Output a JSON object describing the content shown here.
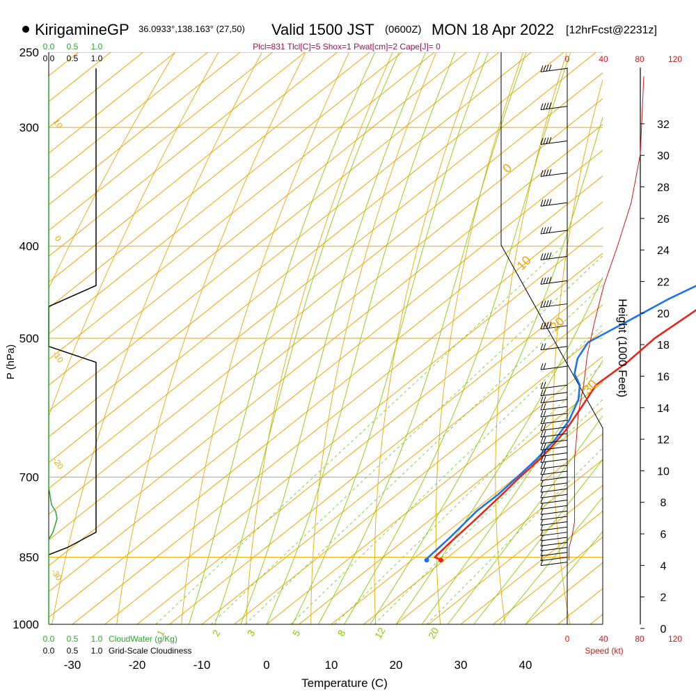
{
  "header": {
    "site": "KirigamineGP",
    "coords": "36.0933°,138.163° (27,50)",
    "valid": "Valid 1500 JST",
    "zulu": "(0600Z)",
    "date": "MON 18 Apr 2022",
    "forecast": "[12hrFcst@2231z]"
  },
  "indices_line": "Plcl=831 Tlcl[C]=5 Shox=1 Pwat[cm]=2 Cape[J]= 0",
  "colors": {
    "isotherm": "#f0a500",
    "adiabat": "#88cc00",
    "mixing": "#77cc33",
    "temp": "#e8251a",
    "dewp": "#1a73e8",
    "cloudwater": "#22aa22",
    "speed": "#e01010",
    "indices": "#a01050"
  },
  "chart_data": {
    "type": "line",
    "title": "KirigamineGP Valid 1500 JST (0600Z) MON 18 Apr 2022",
    "xlabel": "Temperature (C)",
    "ylabel": "P (hPa)",
    "y2label": "Height (1000 Feet)",
    "xlim": [
      -35,
      45
    ],
    "ylim": [
      1000,
      250
    ],
    "x_ticks": [
      -30,
      -20,
      -10,
      0,
      10,
      20,
      30,
      40
    ],
    "p_ticks": [
      250,
      300,
      400,
      500,
      700,
      850,
      1000
    ],
    "height_ticks": [
      0,
      2,
      4,
      6,
      8,
      10,
      12,
      14,
      16,
      18,
      20,
      22,
      24,
      26,
      28,
      30,
      32
    ],
    "mixing_ratio_labels": [
      "1",
      "2",
      "3",
      "5",
      "8",
      "12",
      "20"
    ],
    "adiabat_labels": [
      "0",
      "10",
      "20",
      "30"
    ],
    "isotherm_labels": [
      "10",
      "0",
      "-10",
      "-20",
      "-30"
    ],
    "cloud_scale_labels": [
      "0.0",
      "0.5",
      "1.0"
    ],
    "cloudwater_label": "CloudWater (g/Kg)",
    "cloudiness_label": "Grid-Scale Cloudiness",
    "speed_ticks": [
      0,
      40,
      80,
      120
    ],
    "speed_label": "Speed (kt)",
    "series": [
      {
        "name": "Temperature",
        "points": [
          [
            14.5,
            856
          ],
          [
            13.0,
            850
          ],
          [
            12.5,
            820
          ],
          [
            12.0,
            780
          ],
          [
            11.2,
            730
          ],
          [
            10.6,
            700
          ],
          [
            10.2,
            670
          ],
          [
            9.6,
            650
          ],
          [
            8.6,
            625
          ],
          [
            6.5,
            590
          ],
          [
            4.5,
            560
          ],
          [
            4.9,
            530
          ],
          [
            4.5,
            500
          ],
          [
            5.5,
            465
          ],
          [
            6.3,
            425
          ],
          [
            6.2,
            400
          ],
          [
            5.7,
            385
          ],
          [
            5.0,
            365
          ],
          [
            3.0,
            335
          ],
          [
            0.9,
            310
          ],
          [
            -1.0,
            295
          ],
          [
            -3.0,
            280
          ],
          [
            -5.0,
            268
          ]
        ]
      },
      {
        "name": "Dewpoint",
        "points": [
          [
            12.3,
            856
          ],
          [
            12.0,
            850
          ],
          [
            11.5,
            810
          ],
          [
            10.5,
            760
          ],
          [
            10.6,
            730
          ],
          [
            10.2,
            700
          ],
          [
            9.7,
            670
          ],
          [
            8.8,
            640
          ],
          [
            7.2,
            610
          ],
          [
            4.6,
            580
          ],
          [
            2.0,
            560
          ],
          [
            -1.0,
            545
          ],
          [
            -3.5,
            525
          ],
          [
            -5.0,
            505
          ],
          [
            -3.0,
            480
          ],
          [
            -1.0,
            455
          ],
          [
            0.8,
            440
          ],
          [
            1.5,
            420
          ],
          [
            1.3,
            400
          ],
          [
            -0.3,
            375
          ],
          [
            -2.5,
            350
          ],
          [
            -5.5,
            325
          ],
          [
            -8.5,
            300
          ],
          [
            -11.5,
            280
          ],
          [
            -13.8,
            268
          ]
        ]
      },
      {
        "name": "Cloudiness",
        "points": [
          [
            0.0,
            260
          ],
          [
            0.0,
            440
          ],
          [
            -1.0,
            463
          ],
          [
            -1.0,
            510
          ],
          [
            0.0,
            530
          ],
          [
            0.0,
            800
          ],
          [
            -0.6,
            830
          ],
          [
            -1.0,
            845
          ]
        ]
      },
      {
        "name": "Speed",
        "points": [
          [
            2,
            856
          ],
          [
            2,
            830
          ],
          [
            5,
            810
          ],
          [
            8,
            780
          ],
          [
            8,
            740
          ],
          [
            8,
            700
          ],
          [
            8,
            670
          ],
          [
            10,
            640
          ],
          [
            12,
            600
          ],
          [
            18,
            560
          ],
          [
            22,
            520
          ],
          [
            30,
            480
          ],
          [
            40,
            440
          ],
          [
            55,
            400
          ],
          [
            70,
            360
          ],
          [
            80,
            320
          ],
          [
            82,
            290
          ],
          [
            85,
            265
          ]
        ]
      }
    ]
  }
}
